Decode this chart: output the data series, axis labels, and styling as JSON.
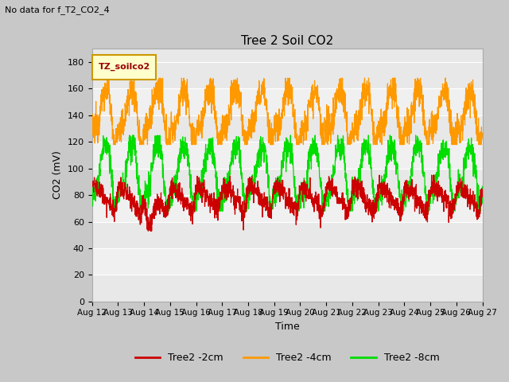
{
  "title": "Tree 2 Soil CO2",
  "subtitle": "No data for f_T2_CO2_4",
  "ylabel": "CO2 (mV)",
  "xlabel": "Time",
  "legend_label": "TZ_soilco2",
  "ylim": [
    0,
    190
  ],
  "yticks": [
    0,
    20,
    40,
    60,
    80,
    100,
    120,
    140,
    160,
    180
  ],
  "xtick_labels": [
    "Aug 12",
    "Aug 13",
    "Aug 14",
    "Aug 15",
    "Aug 16",
    "Aug 17",
    "Aug 18",
    "Aug 19",
    "Aug 20",
    "Aug 21",
    "Aug 22",
    "Aug 23",
    "Aug 24",
    "Aug 25",
    "Aug 26",
    "Aug 27"
  ],
  "series": {
    "Tree2 -2cm": {
      "color": "#cc0000"
    },
    "Tree2 -4cm": {
      "color": "#ff9900"
    },
    "Tree2 -8cm": {
      "color": "#00dd00"
    }
  },
  "fig_bg_color": "#c8c8c8",
  "plot_bg_color": "#e8e8e8",
  "band_colors": [
    "#e8e8e8",
    "#f0f0f0"
  ],
  "grid_color": "#ffffff"
}
